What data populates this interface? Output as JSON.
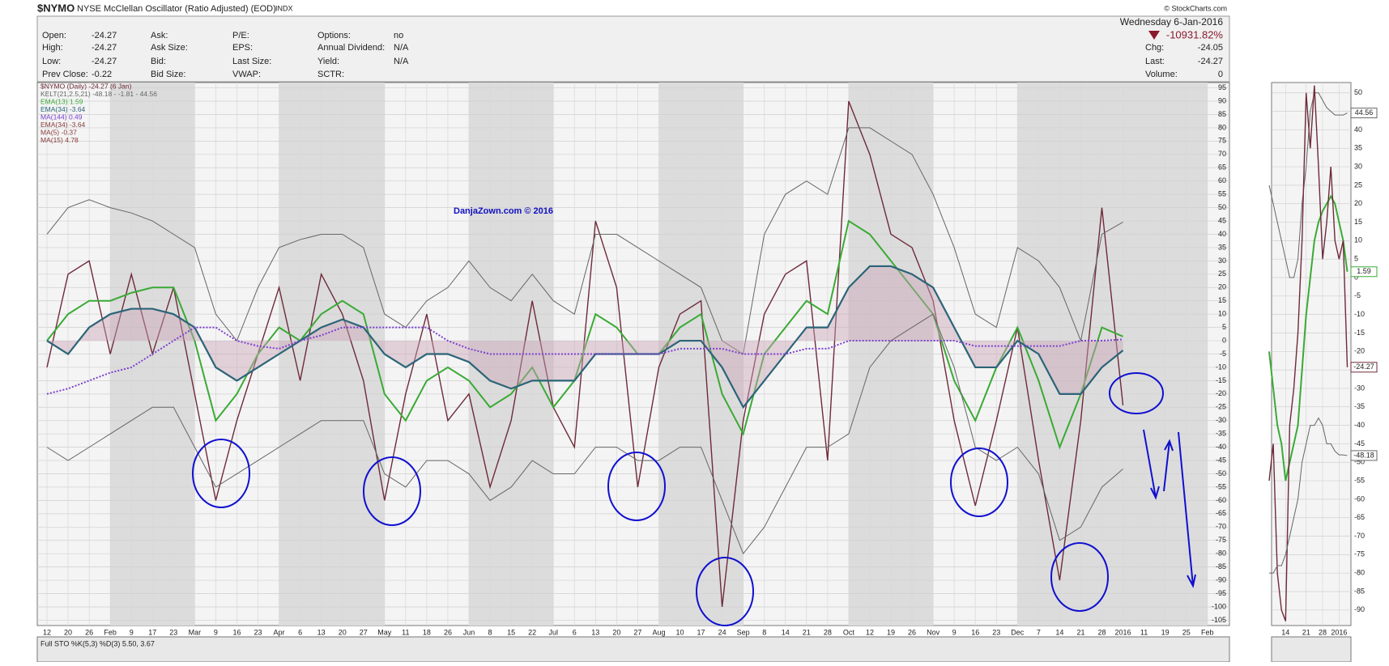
{
  "header": {
    "symbol": "$NYMO",
    "name": "NYSE McClellan Oscillator (Ratio Adjusted) (EOD)",
    "exchange": "INDX",
    "credit": "© StockCharts.com",
    "date": "Wednesday 6-Jan-2016",
    "change_pct": "-10931.82%",
    "fields": [
      [
        "Open:",
        "-24.27"
      ],
      [
        "High:",
        "-24.27"
      ],
      [
        "Low:",
        "-24.27"
      ],
      [
        "Prev Close:",
        "-0.22"
      ],
      [
        "Ask:"
      ],
      [
        "Ask Size:"
      ],
      [
        "Bid:"
      ],
      [
        "Bid Size:"
      ],
      [
        "P/E:"
      ],
      [
        "EPS:"
      ],
      [
        "Last Size:"
      ],
      [
        "VWAP:"
      ],
      [
        "Options:",
        "no"
      ],
      [
        "Annual Dividend:",
        "N/A"
      ],
      [
        "Yield:",
        "N/A"
      ],
      [
        "SCTR:"
      ]
    ],
    "quote": [
      [
        "Chg:",
        "-24.05"
      ],
      [
        "Last:",
        "-24.27"
      ],
      [
        "Volume:",
        "0"
      ]
    ],
    "indicator_panel": "Full STO %K(5,3) %D(3) 5.50, 3.67"
  },
  "chart_data": [
    {
      "type": "line",
      "annotation": "DanjaZown.com © 2016",
      "grid": true,
      "categories": [
        "12",
        "20",
        "26",
        "Feb",
        "9",
        "17",
        "23",
        "Mar",
        "9",
        "16",
        "23",
        "Apr",
        "6",
        "13",
        "20",
        "27",
        "May",
        "11",
        "18",
        "26",
        "Jun",
        "8",
        "15",
        "22",
        "Jul",
        "6",
        "13",
        "20",
        "27",
        "Aug",
        "10",
        "17",
        "24",
        "Sep",
        "8",
        "14",
        "21",
        "28",
        "Oct",
        "12",
        "19",
        "26",
        "Nov",
        "9",
        "16",
        "23",
        "Dec",
        "7",
        "14",
        "21",
        "28",
        "2016",
        "11",
        "19",
        "25",
        "Feb"
      ],
      "ylim": [
        -107,
        97
      ],
      "yticks": [
        95,
        90,
        85,
        80,
        75,
        70,
        65,
        60,
        55,
        50,
        45,
        40,
        35,
        30,
        25,
        20,
        15,
        10,
        5,
        0,
        -5,
        -10,
        -15,
        -20,
        -25,
        -30,
        -35,
        -40,
        -45,
        -50,
        -55,
        -60,
        -65,
        -70,
        -75,
        -80,
        -85,
        -90,
        -95,
        -100,
        -105
      ],
      "series": [
        {
          "name": "$NYMO (Daily) -24.27 (6 Jan)",
          "color": "#6e2a3a",
          "width": 1.4,
          "values": [
            -10,
            25,
            30,
            -5,
            25,
            -5,
            20,
            -20,
            -60,
            -30,
            -5,
            20,
            -15,
            25,
            10,
            -15,
            -60,
            -20,
            10,
            -30,
            -20,
            -55,
            -30,
            15,
            -25,
            -40,
            45,
            20,
            -55,
            -10,
            10,
            15,
            -100,
            -30,
            10,
            25,
            30,
            -45,
            90,
            70,
            40,
            35,
            15,
            -30,
            -62,
            -30,
            5,
            -45,
            -90,
            -30,
            50,
            -24.27,
            null,
            null,
            null,
            null
          ]
        },
        {
          "name": "KELT(21,2.5,21) -48.18 - -1.81 - 44.56",
          "color": "#666666",
          "width": 1,
          "values": [
            40,
            50,
            53,
            50,
            48,
            45,
            40,
            35,
            10,
            0,
            20,
            35,
            38,
            40,
            40,
            35,
            10,
            5,
            15,
            20,
            30,
            20,
            15,
            25,
            15,
            10,
            40,
            40,
            35,
            30,
            25,
            20,
            0,
            -5,
            40,
            55,
            60,
            55,
            80,
            80,
            75,
            70,
            55,
            35,
            10,
            5,
            35,
            30,
            20,
            0,
            40,
            44.56,
            null,
            null,
            null,
            null
          ]
        },
        {
          "name": "EMA(13) 1.59",
          "color": "#3aaa35",
          "width": 2,
          "values": [
            0,
            10,
            15,
            15,
            18,
            20,
            20,
            0,
            -30,
            -20,
            -5,
            5,
            0,
            10,
            15,
            10,
            -20,
            -30,
            -15,
            -10,
            -15,
            -25,
            -20,
            -10,
            -25,
            -15,
            10,
            5,
            -5,
            -5,
            5,
            10,
            -20,
            -35,
            -5,
            5,
            15,
            10,
            45,
            40,
            30,
            20,
            10,
            -15,
            -30,
            -10,
            5,
            -15,
            -40,
            -20,
            5,
            1.59,
            null,
            null,
            null,
            null
          ]
        },
        {
          "name": "EMA(34) -3.64",
          "color": "#2b6478",
          "width": 2.2,
          "fill": "#c9a3b5",
          "values": [
            0,
            -5,
            5,
            10,
            12,
            12,
            10,
            5,
            -10,
            -15,
            -10,
            -5,
            0,
            5,
            8,
            5,
            -5,
            -10,
            -5,
            -5,
            -8,
            -15,
            -18,
            -15,
            -15,
            -15,
            -5,
            -5,
            -5,
            -5,
            0,
            0,
            -10,
            -25,
            -15,
            -5,
            5,
            5,
            20,
            28,
            28,
            25,
            20,
            5,
            -10,
            -10,
            0,
            -5,
            -20,
            -20,
            -10,
            -3.64,
            null,
            null,
            null,
            null
          ]
        },
        {
          "name": "MA(144) 0.49",
          "color": "#7b3fd0",
          "width": 2,
          "line_style": "dotted",
          "values": [
            -20,
            -18,
            -15,
            -12,
            -10,
            -5,
            0,
            5,
            5,
            0,
            -2,
            -3,
            0,
            2,
            5,
            5,
            5,
            5,
            5,
            0,
            -3,
            -5,
            -5,
            -5,
            -5,
            -5,
            -5,
            -5,
            -5,
            -5,
            -3,
            -3,
            -3,
            -5,
            -5,
            -5,
            -3,
            -3,
            0,
            0,
            0,
            0,
            0,
            0,
            -2,
            -2,
            -2,
            -2,
            -2,
            0,
            0,
            0.49,
            null,
            null,
            null,
            null
          ]
        },
        {
          "name": "KELT(21,2.5,21) lower",
          "color": "#666666",
          "width": 1,
          "legend": false,
          "values": [
            -40,
            -45,
            -40,
            -35,
            -30,
            -25,
            -25,
            -40,
            -55,
            -50,
            -45,
            -40,
            -35,
            -30,
            -30,
            -30,
            -50,
            -55,
            -45,
            -45,
            -50,
            -60,
            -55,
            -45,
            -50,
            -50,
            -40,
            -40,
            -45,
            -45,
            -40,
            -40,
            -60,
            -80,
            -70,
            -55,
            -40,
            -40,
            -35,
            -10,
            0,
            5,
            10,
            -10,
            -40,
            -45,
            -40,
            -50,
            -75,
            -70,
            -55,
            -48.18,
            null,
            null,
            null,
            null
          ]
        }
      ],
      "extra_legend": [
        "EMA(34) -3.64",
        "MA(5) -0.37",
        "MA(15) 4.78"
      ]
    },
    {
      "type": "line",
      "grid": true,
      "categories": [
        null,
        null,
        null,
        null,
        "14",
        null,
        null,
        null,
        null,
        "21",
        null,
        null,
        null,
        "28",
        null,
        null,
        null,
        "2016",
        null,
        null
      ],
      "ylim": [
        -94.2,
        52.8
      ],
      "yticks": [
        50,
        45,
        40,
        35,
        30,
        25,
        20,
        15,
        10,
        5,
        0,
        -5,
        -10,
        -15,
        -20,
        -25,
        -30,
        -35,
        -40,
        -45,
        -50,
        -55,
        -60,
        -65,
        -70,
        -75,
        -80,
        -85,
        -90
      ],
      "series": [
        {
          "color": "#666666",
          "width": 1,
          "end_box": true,
          "values": [
            25,
            20,
            15,
            10,
            5,
            0,
            0,
            5,
            20,
            30,
            45,
            50,
            50,
            48,
            46,
            45,
            44,
            44,
            44,
            44.56
          ]
        },
        {
          "color": "#3aaa35",
          "width": 2,
          "end_box": true,
          "values": [
            -20,
            -30,
            -40,
            -45,
            -55,
            -50,
            -45,
            -40,
            -25,
            -10,
            0,
            10,
            15,
            18,
            20,
            22,
            20,
            15,
            10,
            1.59
          ]
        },
        {
          "color": "#6e2a3a",
          "width": 1.4,
          "end_box": true,
          "values": [
            -55,
            -45,
            -80,
            -90,
            -93,
            -40,
            -30,
            -15,
            10,
            50,
            35,
            52,
            30,
            5,
            15,
            30,
            10,
            5,
            10,
            -24.27
          ]
        },
        {
          "color": "#666666",
          "width": 1,
          "end_box": true,
          "values": [
            -80,
            -80,
            -78,
            -78,
            -75,
            -70,
            -65,
            -60,
            -50,
            -45,
            -40,
            -40,
            -38,
            -40,
            -45,
            -45,
            -47,
            -48,
            -48,
            -48.18
          ]
        }
      ]
    }
  ]
}
